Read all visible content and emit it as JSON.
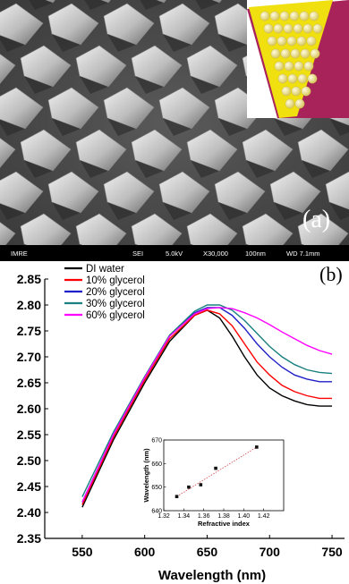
{
  "panel_a": {
    "label": "(a)",
    "sem_info": {
      "institution": "IMRE",
      "detector": "SEI",
      "voltage": "5.0kV",
      "magnification": "X30,000",
      "scale": "100nm",
      "working_distance": "WD 7.1mm"
    },
    "colors": {
      "background": "#4a4a4a",
      "pillar": "#d8d8d8",
      "inset_substrate": "#f0e010",
      "inset_base": "#a8235a",
      "inset_sphere": "#f4f0a0"
    }
  },
  "chart_data": [
    {
      "type": "line",
      "panel_label": "(b)",
      "xlabel": "Wavelength (nm)",
      "ylabel": "",
      "xlim": [
        520,
        760
      ],
      "ylim": [
        2.35,
        2.85
      ],
      "xticks": [
        "550",
        "600",
        "650",
        "700",
        "750"
      ],
      "yticks": [
        "2.35",
        "2.40",
        "2.45",
        "2.50",
        "2.55",
        "2.60",
        "2.65",
        "2.70",
        "2.75",
        "2.80",
        "2.85"
      ],
      "legend_position": "top-left",
      "x": [
        550,
        575,
        600,
        620,
        640,
        650,
        660,
        670,
        680,
        690,
        700,
        710,
        720,
        730,
        740,
        750
      ],
      "series": [
        {
          "name": "DI water",
          "color": "#000000",
          "values": [
            2.41,
            2.54,
            2.65,
            2.73,
            2.78,
            2.79,
            2.775,
            2.74,
            2.7,
            2.665,
            2.64,
            2.625,
            2.615,
            2.608,
            2.605,
            2.605
          ]
        },
        {
          "name": "10% glycerol",
          "color": "#ff0000",
          "values": [
            2.415,
            2.545,
            2.655,
            2.735,
            2.78,
            2.79,
            2.783,
            2.76,
            2.725,
            2.69,
            2.665,
            2.645,
            2.633,
            2.625,
            2.62,
            2.62
          ]
        },
        {
          "name": "20% glycerol",
          "color": "#1f1fc8",
          "values": [
            2.42,
            2.55,
            2.66,
            2.74,
            2.785,
            2.795,
            2.795,
            2.78,
            2.755,
            2.725,
            2.7,
            2.68,
            2.665,
            2.657,
            2.652,
            2.652
          ]
        },
        {
          "name": "30% glycerol",
          "color": "#1a8080",
          "values": [
            2.43,
            2.555,
            2.662,
            2.742,
            2.788,
            2.8,
            2.8,
            2.79,
            2.77,
            2.745,
            2.72,
            2.7,
            2.685,
            2.675,
            2.67,
            2.668
          ]
        },
        {
          "name": "60% glycerol",
          "color": "#ff00ff",
          "values": [
            2.42,
            2.55,
            2.66,
            2.74,
            2.783,
            2.793,
            2.795,
            2.793,
            2.785,
            2.775,
            2.762,
            2.748,
            2.735,
            2.722,
            2.712,
            2.705
          ]
        }
      ]
    },
    {
      "type": "scatter",
      "role": "inset",
      "xlabel": "Refractive index",
      "ylabel": "Wavelength (nm)",
      "xlim": [
        1.32,
        1.44
      ],
      "ylim": [
        640,
        670
      ],
      "xticks": [
        "1.32",
        "1.34",
        "1.36",
        "1.38",
        "1.40",
        "1.42"
      ],
      "yticks": [
        "640",
        "650",
        "660",
        "670"
      ],
      "points": [
        {
          "x": 1.333,
          "y": 646
        },
        {
          "x": 1.345,
          "y": 650
        },
        {
          "x": 1.357,
          "y": 651
        },
        {
          "x": 1.372,
          "y": 658
        },
        {
          "x": 1.413,
          "y": 667
        }
      ],
      "fit": {
        "x": [
          1.333,
          1.413
        ],
        "y": [
          646,
          667
        ],
        "style": "dotted",
        "color": "#d04040"
      }
    }
  ]
}
